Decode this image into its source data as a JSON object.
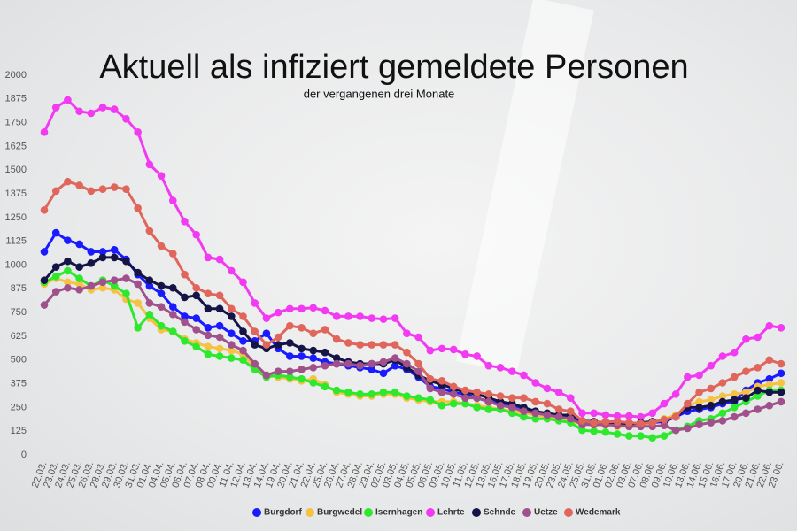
{
  "chart_data": {
    "type": "line",
    "title": "Aktuell als infiziert gemeldete Personen",
    "subtitle": "der vergangenen drei Monate",
    "categories": [
      "22.03.",
      "23.03.",
      "24.03.",
      "25.03.",
      "26.03.",
      "28.03.",
      "29.03.",
      "30.03.",
      "31.03.",
      "01.04.",
      "04.04.",
      "05.04.",
      "06.04.",
      "07.04.",
      "08.04.",
      "09.04.",
      "11.04.",
      "12.04.",
      "13.04.",
      "14.04.",
      "19.04.",
      "20.04.",
      "21.04.",
      "22.04.",
      "25.04.",
      "26.04.",
      "27.04.",
      "28.04.",
      "29.04.",
      "02.05.",
      "03.05.",
      "04.05.",
      "05.05.",
      "06.05.",
      "09.05.",
      "10.05.",
      "11.05.",
      "12.05.",
      "13.05.",
      "16.05.",
      "17.05.",
      "18.05.",
      "19.05.",
      "20.05.",
      "23.05.",
      "24.05.",
      "25.05.",
      "31.05.",
      "01.06.",
      "02.06.",
      "03.06.",
      "07.06.",
      "08.06.",
      "09.06.",
      "10.06.",
      "13.06.",
      "14.06.",
      "15.06.",
      "16.06.",
      "17.06.",
      "20.06.",
      "21.06.",
      "22.06.",
      "23.06."
    ],
    "ylim": [
      0,
      2000
    ],
    "yticks": [
      0,
      125,
      250,
      375,
      500,
      625,
      750,
      875,
      1000,
      1125,
      1250,
      1375,
      1500,
      1625,
      1750,
      1875,
      2000
    ],
    "grid": false,
    "legend": "bottom",
    "series": [
      {
        "name": "Burgdorf",
        "color": "#1a1aff",
        "values": [
          1070,
          1170,
          1130,
          1110,
          1070,
          1070,
          1080,
          1030,
          950,
          890,
          850,
          780,
          730,
          720,
          670,
          680,
          640,
          600,
          600,
          640,
          560,
          520,
          520,
          510,
          490,
          480,
          470,
          460,
          450,
          430,
          470,
          450,
          410,
          360,
          350,
          330,
          320,
          300,
          280,
          270,
          260,
          240,
          220,
          210,
          200,
          200,
          170,
          170,
          165,
          160,
          155,
          160,
          170,
          175,
          200,
          230,
          240,
          250,
          270,
          280,
          340,
          380,
          400,
          430
        ]
      },
      {
        "name": "Burgwedel",
        "color": "#f5c242",
        "values": [
          900,
          930,
          910,
          900,
          870,
          880,
          870,
          820,
          800,
          720,
          660,
          650,
          610,
          590,
          570,
          560,
          550,
          530,
          460,
          420,
          410,
          400,
          390,
          400,
          370,
          330,
          320,
          310,
          310,
          320,
          320,
          300,
          290,
          280,
          280,
          280,
          270,
          260,
          250,
          240,
          230,
          220,
          210,
          200,
          190,
          180,
          160,
          160,
          155,
          150,
          150,
          160,
          170,
          190,
          210,
          260,
          280,
          290,
          310,
          320,
          330,
          360,
          370,
          380
        ]
      },
      {
        "name": "Isernhagen",
        "color": "#2ee82e",
        "values": [
          910,
          940,
          970,
          930,
          890,
          920,
          890,
          850,
          670,
          740,
          680,
          650,
          600,
          570,
          530,
          520,
          510,
          500,
          450,
          410,
          420,
          410,
          400,
          380,
          360,
          340,
          330,
          320,
          320,
          330,
          330,
          310,
          300,
          290,
          260,
          270,
          270,
          250,
          240,
          240,
          220,
          200,
          190,
          190,
          180,
          170,
          130,
          125,
          120,
          110,
          100,
          100,
          90,
          100,
          130,
          150,
          180,
          190,
          220,
          250,
          280,
          310,
          340,
          340
        ]
      },
      {
        "name": "Lehrte",
        "color": "#f23af2",
        "values": [
          1700,
          1830,
          1870,
          1810,
          1800,
          1830,
          1820,
          1770,
          1700,
          1530,
          1470,
          1340,
          1230,
          1160,
          1040,
          1030,
          970,
          910,
          800,
          720,
          750,
          770,
          770,
          775,
          760,
          730,
          730,
          730,
          720,
          715,
          720,
          640,
          620,
          550,
          560,
          555,
          530,
          520,
          470,
          460,
          440,
          420,
          380,
          350,
          330,
          300,
          220,
          220,
          210,
          205,
          205,
          200,
          220,
          270,
          320,
          410,
          420,
          470,
          520,
          540,
          610,
          620,
          680,
          670
        ]
      },
      {
        "name": "Sehnde",
        "color": "#141447",
        "values": [
          920,
          990,
          1020,
          990,
          1010,
          1040,
          1040,
          1020,
          960,
          920,
          890,
          880,
          830,
          840,
          770,
          770,
          730,
          650,
          580,
          560,
          580,
          590,
          560,
          550,
          540,
          510,
          490,
          480,
          480,
          480,
          500,
          460,
          420,
          390,
          370,
          350,
          330,
          320,
          300,
          280,
          270,
          250,
          230,
          220,
          210,
          210,
          180,
          175,
          170,
          170,
          160,
          170,
          175,
          180,
          200,
          250,
          250,
          260,
          280,
          290,
          300,
          340,
          330,
          330
        ]
      },
      {
        "name": "Uetze",
        "color": "#a0508a",
        "values": [
          790,
          860,
          880,
          870,
          890,
          910,
          920,
          930,
          900,
          800,
          780,
          740,
          700,
          660,
          630,
          620,
          580,
          550,
          480,
          420,
          440,
          440,
          450,
          460,
          470,
          480,
          480,
          470,
          480,
          490,
          510,
          480,
          440,
          350,
          330,
          320,
          300,
          300,
          280,
          260,
          250,
          230,
          220,
          210,
          200,
          190,
          160,
          160,
          160,
          155,
          150,
          150,
          150,
          155,
          130,
          140,
          160,
          170,
          180,
          200,
          220,
          240,
          260,
          280
        ]
      },
      {
        "name": "Wedemark",
        "color": "#e0665c",
        "values": [
          1290,
          1390,
          1440,
          1420,
          1390,
          1400,
          1410,
          1400,
          1300,
          1180,
          1100,
          1060,
          950,
          880,
          850,
          840,
          770,
          730,
          650,
          580,
          620,
          680,
          670,
          640,
          660,
          610,
          590,
          580,
          580,
          580,
          580,
          540,
          480,
          400,
          390,
          360,
          340,
          330,
          320,
          310,
          300,
          300,
          280,
          270,
          240,
          230,
          180,
          170,
          175,
          175,
          170,
          165,
          170,
          185,
          200,
          270,
          330,
          350,
          380,
          410,
          440,
          460,
          500,
          480
        ]
      }
    ]
  }
}
